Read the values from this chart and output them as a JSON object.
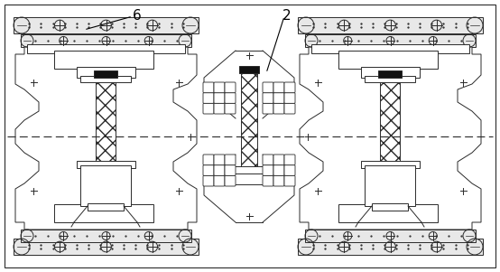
{
  "background_color": "#ffffff",
  "line_color": "#2a2a2a",
  "label_6": "6",
  "label_2": "2",
  "fig_width": 5.54,
  "fig_height": 3.01,
  "dpi": 100
}
